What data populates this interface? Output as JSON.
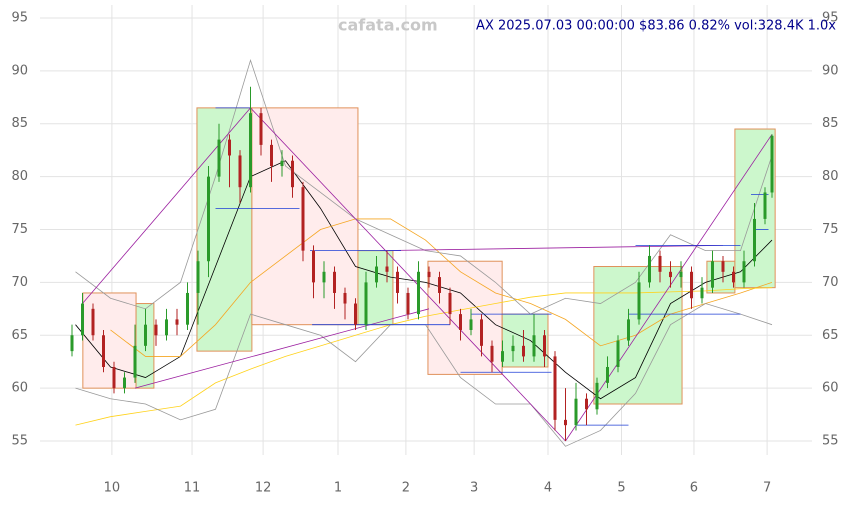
{
  "chart_data": {
    "type": "candlestick",
    "title": "AX 2025.07.03 00:00:00 $83.86 0.82% vol:328.4K 1.0x",
    "watermark": "cafata.com",
    "xlim": [
      0,
      206
    ],
    "ylim": [
      54,
      96
    ],
    "grid": true,
    "yticks": [
      55,
      60,
      65,
      70,
      75,
      80,
      85,
      90,
      95
    ],
    "xticks": [
      {
        "value": 13.4,
        "label": "10"
      },
      {
        "value": 36.3,
        "label": "11"
      },
      {
        "value": 56.6,
        "label": "12"
      },
      {
        "value": 78,
        "label": "1"
      },
      {
        "value": 97.4,
        "label": "2"
      },
      {
        "value": 116.9,
        "label": "3"
      },
      {
        "value": 138,
        "label": "4"
      },
      {
        "value": 159,
        "label": "5"
      },
      {
        "value": 179.7,
        "label": "6"
      },
      {
        "value": 200.6,
        "label": "7"
      }
    ],
    "up_color": "#2a9a2a",
    "down_color": "#b22222",
    "candles": {
      "x": [
        2,
        5,
        8,
        11,
        14,
        17,
        20,
        23,
        26,
        29,
        32,
        35,
        38,
        41,
        44,
        47,
        50,
        53,
        56,
        59,
        62,
        65,
        68,
        71,
        74,
        77,
        80,
        83,
        86,
        89,
        92,
        95,
        98,
        101,
        104,
        107,
        110,
        113,
        116,
        119,
        122,
        125,
        128,
        131,
        134,
        137,
        140,
        143,
        146,
        149,
        152,
        155,
        158,
        161,
        164,
        167,
        170,
        173,
        176,
        179,
        182,
        185,
        188,
        191,
        194,
        197,
        200,
        202
      ],
      "open": [
        63.5,
        65,
        67.5,
        65,
        62,
        60,
        61,
        64,
        66,
        65,
        66.5,
        66,
        69,
        72,
        80,
        83.5,
        82,
        79,
        86,
        83,
        81,
        81.5,
        79,
        73,
        70,
        71,
        69,
        68,
        66,
        70,
        71.5,
        71,
        69,
        67,
        71,
        70.5,
        69,
        67,
        65.5,
        66.5,
        64,
        62.5,
        63.5,
        64,
        63,
        65,
        63,
        57,
        56.5,
        59,
        58,
        60.5,
        62,
        64.5,
        66.5,
        70,
        72.5,
        71,
        70.5,
        71,
        68.5,
        69.5,
        72,
        71,
        70,
        72,
        76,
        78.5
      ],
      "high": [
        66,
        69,
        68,
        65.5,
        62.5,
        61.5,
        66,
        67.5,
        66.5,
        67.5,
        67.5,
        70,
        73,
        81,
        85,
        84,
        82.5,
        88.5,
        86.5,
        83.5,
        82.5,
        82,
        79.5,
        73.5,
        72,
        71.5,
        69.5,
        68.5,
        71,
        72.5,
        73,
        71.5,
        69.5,
        72,
        71.5,
        71,
        69.5,
        67.5,
        67.5,
        67,
        64.5,
        64.5,
        65,
        65.5,
        67,
        65.5,
        63.5,
        60,
        60.5,
        59.5,
        61,
        63,
        65,
        67.5,
        71,
        73.5,
        73,
        72,
        72,
        71.5,
        70.5,
        73,
        72.5,
        71.5,
        73,
        77.5,
        79,
        84
      ],
      "low": [
        63,
        64.5,
        64.5,
        61.5,
        59.5,
        59.5,
        60.5,
        63.5,
        64,
        64.5,
        65,
        65.5,
        66,
        70.5,
        79.5,
        79,
        77.5,
        78.5,
        82,
        79.5,
        80,
        78,
        72,
        68.5,
        68.5,
        67.5,
        66.5,
        65.5,
        65.5,
        69.5,
        70,
        68,
        66.5,
        66.5,
        69.5,
        68,
        66,
        64.5,
        65,
        63,
        61.5,
        62,
        62.5,
        62.5,
        62.5,
        62,
        56,
        55,
        56,
        56.5,
        57.5,
        60,
        61.5,
        64,
        66,
        69.5,
        70,
        69.5,
        69.5,
        67.5,
        68,
        69,
        70,
        69.5,
        69.5,
        71.5,
        75.5,
        78
      ],
      "close": [
        65,
        68,
        65,
        62,
        60,
        61,
        64,
        66,
        65,
        66.5,
        66,
        69,
        72,
        80,
        83.5,
        82,
        79,
        86,
        83,
        81,
        81.5,
        79,
        73,
        70,
        71,
        69,
        68,
        66,
        70,
        71.5,
        71,
        69,
        67,
        71,
        70.5,
        69,
        67,
        65.5,
        66.5,
        64,
        62.5,
        63.5,
        64,
        63,
        65,
        63,
        57,
        56.5,
        59,
        58,
        60.5,
        62,
        64.5,
        66.5,
        70,
        72.5,
        71,
        70.5,
        71,
        68.5,
        69.5,
        72,
        71,
        70,
        72,
        76,
        78.5,
        83.86
      ]
    },
    "boxes": [
      {
        "x": [
          5.1,
          20.3
        ],
        "y": [
          60,
          69
        ],
        "color": "#ffecec"
      },
      {
        "x": [
          20.3,
          25.4
        ],
        "y": [
          60,
          68
        ],
        "color": "#ccf7cc"
      },
      {
        "x": [
          37.7,
          53.4
        ],
        "y": [
          63.5,
          86.5
        ],
        "color": "#ccf7cc"
      },
      {
        "x": [
          53.4,
          83.7
        ],
        "y": [
          66,
          86.5
        ],
        "color": "#ffecec"
      },
      {
        "x": [
          83.7,
          93.7
        ],
        "y": [
          66,
          73
        ],
        "color": "#ccf7cc"
      },
      {
        "x": [
          103.7,
          124.9
        ],
        "y": [
          61.3,
          72
        ],
        "color": "#ffecec"
      },
      {
        "x": [
          124.9,
          138
        ],
        "y": [
          62,
          67
        ],
        "color": "#ccf7cc"
      },
      {
        "x": [
          151.1,
          176.3
        ],
        "y": [
          58.5,
          71.5
        ],
        "color": "#ccf7cc"
      },
      {
        "x": [
          183.4,
          191.4
        ],
        "y": [
          69,
          72
        ],
        "color": "#ccf7cc"
      },
      {
        "x": [
          191.4,
          202.9
        ],
        "y": [
          69.5,
          84.5
        ],
        "color": "#ccf7cc"
      }
    ],
    "lines": [
      {
        "color": "#000000",
        "x": [
          3,
          13,
          23,
          33,
          43,
          53,
          63,
          73,
          83,
          93,
          103,
          113,
          123,
          133,
          143,
          153,
          163,
          173,
          183,
          193,
          202
        ],
        "values": [
          66,
          62,
          61,
          63,
          71.5,
          80,
          81.5,
          77,
          71.5,
          70.5,
          70,
          69,
          66,
          64.5,
          61.5,
          59,
          61,
          68,
          70,
          71,
          74
        ]
      },
      {
        "color": "#f5a623",
        "x": [
          3,
          13,
          23,
          33,
          43,
          53,
          63,
          73,
          83,
          93,
          103,
          113,
          123,
          133,
          143,
          153,
          163,
          173,
          183,
          193,
          202
        ],
        "values": [
          null,
          65.5,
          63,
          63,
          66,
          70,
          72.5,
          75,
          76,
          76,
          74,
          71,
          69,
          68,
          66.5,
          64,
          65,
          67,
          68,
          69,
          70
        ]
      },
      {
        "color": "#ffd21a",
        "x": [
          3,
          13,
          23,
          33,
          43,
          53,
          63,
          73,
          83,
          93,
          103,
          113,
          123,
          133,
          143,
          153,
          163,
          173,
          183,
          193,
          202
        ],
        "values": [
          56.5,
          57.3,
          57.8,
          58.3,
          60.5,
          61.8,
          63,
          64,
          65,
          66,
          66.8,
          67.4,
          68,
          68.6,
          69,
          69,
          69,
          69.1,
          69.2,
          69.4,
          69.5
        ]
      },
      {
        "color": "#999999",
        "x": [
          3,
          13,
          23,
          33,
          43,
          53,
          63,
          73,
          83,
          93,
          103,
          113,
          123,
          133,
          143,
          153,
          163,
          173,
          183,
          193,
          202
        ],
        "values": [
          71,
          68.5,
          67.5,
          70,
          80,
          91,
          81,
          78.5,
          76,
          74.5,
          73,
          72.5,
          70,
          67,
          68.5,
          68,
          70,
          74.5,
          73,
          73,
          82
        ]
      },
      {
        "color": "#999999",
        "x": [
          3,
          13,
          23,
          33,
          43,
          53,
          63,
          73,
          83,
          93,
          103,
          113,
          123,
          133,
          143,
          153,
          163,
          173,
          183,
          193,
          202
        ],
        "values": [
          60,
          59,
          58.5,
          57,
          58,
          67,
          66,
          65,
          62.5,
          66,
          66,
          61,
          58.5,
          58.5,
          54.5,
          56,
          59.5,
          66,
          68,
          67,
          66
        ]
      }
    ],
    "trend_color": "#9b1fa0",
    "trends": [
      [
        5,
        68,
        53,
        86.5
      ],
      [
        53,
        86.5,
        143,
        55
      ],
      [
        143,
        55,
        202,
        84
      ],
      [
        20,
        60,
        104,
        67.5
      ],
      [
        90,
        73,
        188,
        73.5
      ]
    ],
    "level_color": "#1f3fd6",
    "levels": [
      [
        43,
        53,
        86.5
      ],
      [
        43,
        67,
        77
      ],
      [
        70.6,
        110,
        66
      ],
      [
        70,
        96,
        73
      ],
      [
        113,
        139,
        61.5
      ],
      [
        116,
        139,
        67
      ],
      [
        146,
        161,
        56.5
      ],
      [
        163,
        193,
        73.5
      ],
      [
        161,
        193,
        67
      ],
      [
        196,
        201,
        78.3
      ],
      [
        197,
        201,
        75
      ]
    ]
  }
}
